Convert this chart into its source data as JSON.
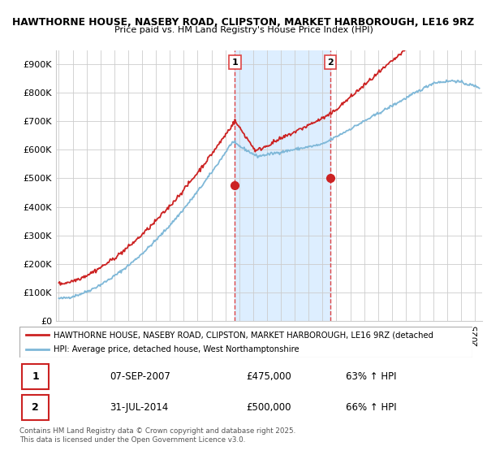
{
  "title1": "HAWTHORNE HOUSE, NASEBY ROAD, CLIPSTON, MARKET HARBOROUGH, LE16 9RZ",
  "title2": "Price paid vs. HM Land Registry's House Price Index (HPI)",
  "legend_line1": "HAWTHORNE HOUSE, NASEBY ROAD, CLIPSTON, MARKET HARBOROUGH, LE16 9RZ (detached",
  "legend_line2": "HPI: Average price, detached house, West Northamptonshire",
  "annotation1_label": "1",
  "annotation1_date": "07-SEP-2007",
  "annotation1_price": "£475,000",
  "annotation1_hpi": "63% ↑ HPI",
  "annotation2_label": "2",
  "annotation2_date": "31-JUL-2014",
  "annotation2_price": "£500,000",
  "annotation2_hpi": "66% ↑ HPI",
  "footer": "Contains HM Land Registry data © Crown copyright and database right 2025.\nThis data is licensed under the Open Government Licence v3.0.",
  "sale1_year": 2007.69,
  "sale1_price": 475000,
  "sale2_year": 2014.58,
  "sale2_price": 500000,
  "hpi_color": "#7fb8d8",
  "price_color": "#cc2222",
  "background_color": "#ffffff",
  "shaded_color": "#ddeeff",
  "vline_color": "#dd4444",
  "ylim": [
    0,
    950000
  ],
  "yticks": [
    0,
    100000,
    200000,
    300000,
    400000,
    500000,
    600000,
    700000,
    800000,
    900000
  ],
  "ytick_labels": [
    "£0",
    "£100K",
    "£200K",
    "£300K",
    "£400K",
    "£500K",
    "£600K",
    "£700K",
    "£800K",
    "£900K"
  ],
  "xlim_start": 1994.8,
  "xlim_end": 2025.5
}
